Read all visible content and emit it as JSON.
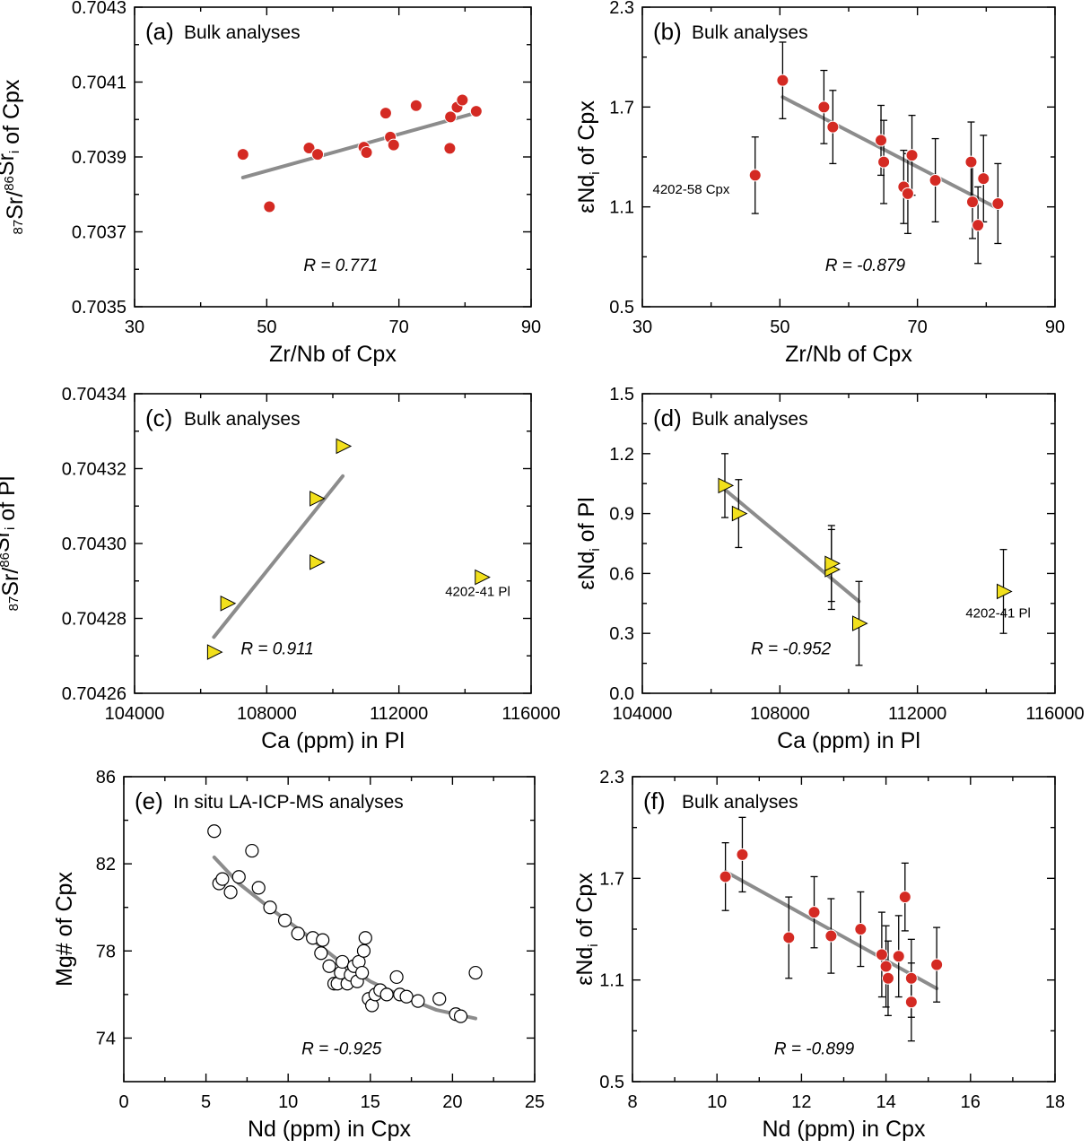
{
  "chart_data": [
    {
      "id": "a",
      "type": "scatter",
      "panel_label": "(a)",
      "title": "Bulk analyses",
      "xlabel": "Zr/Nb of Cpx",
      "ylabel": "87Sr/86Sri of Cpx",
      "xlim": [
        30,
        90
      ],
      "ylim": [
        0.7035,
        0.7043
      ],
      "xticks": [
        30,
        50,
        70,
        90
      ],
      "yticks": [
        0.7035,
        0.7037,
        0.7039,
        0.7041,
        0.7043
      ],
      "ytick_labels": [
        "0.7035",
        "0.7037",
        "0.7039",
        "0.7041",
        "0.7043"
      ],
      "marker": "circle",
      "marker_color": "#d42a23",
      "points": [
        {
          "x": 46.4,
          "y": 0.703907
        },
        {
          "x": 50.4,
          "y": 0.703767
        },
        {
          "x": 56.4,
          "y": 0.703924
        },
        {
          "x": 57.7,
          "y": 0.703907
        },
        {
          "x": 64.7,
          "y": 0.703926
        },
        {
          "x": 65.1,
          "y": 0.703912
        },
        {
          "x": 68.0,
          "y": 0.704017
        },
        {
          "x": 68.7,
          "y": 0.703953
        },
        {
          "x": 69.2,
          "y": 0.703932
        },
        {
          "x": 72.6,
          "y": 0.704037
        },
        {
          "x": 77.8,
          "y": 0.704007
        },
        {
          "x": 77.7,
          "y": 0.703923
        },
        {
          "x": 78.8,
          "y": 0.704033
        },
        {
          "x": 79.6,
          "y": 0.704052
        },
        {
          "x": 81.7,
          "y": 0.704022
        }
      ],
      "fit_line": [
        [
          46.4,
          0.703845
        ],
        [
          81.7,
          0.704018
        ]
      ],
      "r_text": "R = 0.771"
    },
    {
      "id": "b",
      "type": "scatter",
      "panel_label": "(b)",
      "title": "Bulk analyses",
      "xlabel": "Zr/Nb of Cpx",
      "ylabel": "εNdi of Cpx",
      "xlim": [
        30,
        90
      ],
      "ylim": [
        0.5,
        2.3
      ],
      "xticks": [
        30,
        50,
        70,
        90
      ],
      "yticks": [
        0.5,
        1.1,
        1.7,
        2.3
      ],
      "ytick_labels": [
        "0.5",
        "1.1",
        "1.7",
        "2.3"
      ],
      "marker": "circle",
      "marker_color": "#d42a23",
      "points": [
        {
          "x": 46.4,
          "y": 1.29,
          "err": 0.23
        },
        {
          "x": 50.4,
          "y": 1.86,
          "err": 0.23
        },
        {
          "x": 56.4,
          "y": 1.7,
          "err": 0.22
        },
        {
          "x": 57.7,
          "y": 1.58,
          "err": 0.22
        },
        {
          "x": 64.7,
          "y": 1.5,
          "err": 0.21
        },
        {
          "x": 65.1,
          "y": 1.37,
          "err": 0.25
        },
        {
          "x": 68.0,
          "y": 1.22,
          "err": 0.22
        },
        {
          "x": 68.6,
          "y": 1.18,
          "err": 0.24
        },
        {
          "x": 69.2,
          "y": 1.41,
          "err": 0.24
        },
        {
          "x": 72.6,
          "y": 1.26,
          "err": 0.25
        },
        {
          "x": 77.8,
          "y": 1.37,
          "err": 0.24
        },
        {
          "x": 78.0,
          "y": 1.13,
          "err": 0.22
        },
        {
          "x": 78.8,
          "y": 0.99,
          "err": 0.23
        },
        {
          "x": 79.6,
          "y": 1.27,
          "err": 0.26
        },
        {
          "x": 81.7,
          "y": 1.12,
          "err": 0.24
        }
      ],
      "fit_line": [
        [
          50.4,
          1.76
        ],
        [
          81.7,
          1.09
        ]
      ],
      "r_text": "R = -0.879",
      "annotations": [
        {
          "text": "4202-58 Cpx",
          "x": 31.5,
          "y": 1.18
        }
      ]
    },
    {
      "id": "c",
      "type": "scatter",
      "panel_label": "(c)",
      "title": "Bulk analyses",
      "xlabel": "Ca (ppm) in Pl",
      "ylabel": "87Sr/86Sri of Pl",
      "xlim": [
        104000,
        116000
      ],
      "ylim": [
        0.70426,
        0.70434
      ],
      "xticks": [
        104000,
        108000,
        112000,
        116000
      ],
      "yticks": [
        0.70426,
        0.70428,
        0.7043,
        0.70432,
        0.70434
      ],
      "ytick_labels": [
        "0.70426",
        "0.70428",
        "0.70430",
        "0.70432",
        "0.70434"
      ],
      "marker": "triangle-right",
      "marker_color": "#f2e01c",
      "points": [
        {
          "x": 106400,
          "y": 0.704271
        },
        {
          "x": 106800,
          "y": 0.704284
        },
        {
          "x": 109500,
          "y": 0.704312
        },
        {
          "x": 109500,
          "y": 0.704295
        },
        {
          "x": 110300,
          "y": 0.704326
        },
        {
          "x": 114500,
          "y": 0.704291
        }
      ],
      "fit_line": [
        [
          106400,
          0.704275
        ],
        [
          110300,
          0.704318
        ]
      ],
      "r_text": "R = 0.911",
      "annotations": [
        {
          "text": "4202-41 Pl",
          "x": 113400,
          "y": 0.704286
        }
      ]
    },
    {
      "id": "d",
      "type": "scatter",
      "panel_label": "(d)",
      "title": "Bulk analyses",
      "xlabel": "Ca (ppm) in Pl",
      "ylabel": "εNdi of Pl",
      "xlim": [
        104000,
        116000
      ],
      "ylim": [
        0.0,
        1.5
      ],
      "xticks": [
        104000,
        108000,
        112000,
        116000
      ],
      "yticks": [
        0.0,
        0.3,
        0.6,
        0.9,
        1.2,
        1.5
      ],
      "ytick_labels": [
        "0.0",
        "0.3",
        "0.6",
        "0.9",
        "1.2",
        "1.5"
      ],
      "marker": "triangle-right",
      "marker_color": "#f2e01c",
      "points": [
        {
          "x": 106400,
          "y": 1.04,
          "err": 0.16
        },
        {
          "x": 106800,
          "y": 0.9,
          "err": 0.17
        },
        {
          "x": 109500,
          "y": 0.62,
          "err": 0.2
        },
        {
          "x": 109500,
          "y": 0.65,
          "err": 0.19
        },
        {
          "x": 110300,
          "y": 0.35,
          "err": 0.21
        },
        {
          "x": 114500,
          "y": 0.51,
          "err": 0.21
        }
      ],
      "fit_line": [
        [
          106400,
          1.02
        ],
        [
          110300,
          0.46
        ]
      ],
      "r_text": "R = -0.952",
      "annotations": [
        {
          "text": "4202-41 Pl",
          "x": 113400,
          "y": 0.38
        }
      ]
    },
    {
      "id": "e",
      "type": "scatter",
      "panel_label": "(e)",
      "title": "In situ LA-ICP-MS analyses",
      "xlabel": "Nd (ppm) in Cpx",
      "ylabel": "Mg# of Cpx",
      "xlim": [
        0,
        25
      ],
      "ylim": [
        72,
        86
      ],
      "xticks": [
        0,
        5,
        10,
        15,
        20,
        25
      ],
      "yticks": [
        74,
        78,
        82,
        86
      ],
      "ytick_labels": [
        "74",
        "78",
        "82",
        "86"
      ],
      "marker": "open-circle",
      "marker_color": "#ffffff",
      "points": [
        {
          "x": 5.5,
          "y": 83.5
        },
        {
          "x": 5.8,
          "y": 81.1
        },
        {
          "x": 6.0,
          "y": 81.3
        },
        {
          "x": 6.5,
          "y": 80.7
        },
        {
          "x": 7.0,
          "y": 81.4
        },
        {
          "x": 7.8,
          "y": 82.6
        },
        {
          "x": 8.2,
          "y": 80.9
        },
        {
          "x": 8.9,
          "y": 80.0
        },
        {
          "x": 9.8,
          "y": 79.4
        },
        {
          "x": 10.6,
          "y": 78.8
        },
        {
          "x": 11.5,
          "y": 78.6
        },
        {
          "x": 12.0,
          "y": 77.9
        },
        {
          "x": 12.1,
          "y": 78.5
        },
        {
          "x": 12.5,
          "y": 77.3
        },
        {
          "x": 12.8,
          "y": 76.5
        },
        {
          "x": 13.0,
          "y": 76.5
        },
        {
          "x": 13.2,
          "y": 77.0
        },
        {
          "x": 13.3,
          "y": 77.5
        },
        {
          "x": 13.6,
          "y": 76.5
        },
        {
          "x": 13.8,
          "y": 76.9
        },
        {
          "x": 14.0,
          "y": 77.3
        },
        {
          "x": 14.2,
          "y": 76.6
        },
        {
          "x": 14.3,
          "y": 77.5
        },
        {
          "x": 14.5,
          "y": 77.0
        },
        {
          "x": 14.6,
          "y": 78.0
        },
        {
          "x": 14.7,
          "y": 78.6
        },
        {
          "x": 14.9,
          "y": 75.8
        },
        {
          "x": 15.1,
          "y": 75.5
        },
        {
          "x": 15.3,
          "y": 76.0
        },
        {
          "x": 15.6,
          "y": 76.2
        },
        {
          "x": 16.0,
          "y": 76.0
        },
        {
          "x": 16.6,
          "y": 76.8
        },
        {
          "x": 16.8,
          "y": 76.0
        },
        {
          "x": 17.2,
          "y": 75.9
        },
        {
          "x": 17.9,
          "y": 75.7
        },
        {
          "x": 19.2,
          "y": 75.8
        },
        {
          "x": 20.2,
          "y": 75.1
        },
        {
          "x": 20.5,
          "y": 75.0
        },
        {
          "x": 21.4,
          "y": 77.0
        }
      ],
      "fit_curve": [
        [
          5.5,
          82.3
        ],
        [
          7,
          81.1
        ],
        [
          9,
          79.9
        ],
        [
          11,
          78.8
        ],
        [
          13,
          77.6
        ],
        [
          15,
          76.6
        ],
        [
          17,
          75.9
        ],
        [
          19,
          75.3
        ],
        [
          21.4,
          74.9
        ]
      ],
      "r_text": "R = -0.925"
    },
    {
      "id": "f",
      "type": "scatter",
      "panel_label": "(f)",
      "title": "Bulk analyses",
      "xlabel": "Nd (ppm) in Cpx",
      "ylabel": "εNdi of Cpx",
      "xlim": [
        8,
        18
      ],
      "ylim": [
        0.5,
        2.3
      ],
      "xticks": [
        8,
        10,
        12,
        14,
        16,
        18
      ],
      "yticks": [
        0.5,
        1.1,
        1.7,
        2.3
      ],
      "ytick_labels": [
        "0.5",
        "1.1",
        "1.7",
        "2.3"
      ],
      "marker": "circle",
      "marker_color": "#d42a23",
      "points": [
        {
          "x": 10.2,
          "y": 1.71,
          "err": 0.2
        },
        {
          "x": 10.6,
          "y": 1.84,
          "err": 0.22
        },
        {
          "x": 11.7,
          "y": 1.35,
          "err": 0.24
        },
        {
          "x": 12.3,
          "y": 1.5,
          "err": 0.21
        },
        {
          "x": 12.7,
          "y": 1.36,
          "err": 0.22
        },
        {
          "x": 13.4,
          "y": 1.4,
          "err": 0.22
        },
        {
          "x": 13.9,
          "y": 1.25,
          "err": 0.25
        },
        {
          "x": 14.0,
          "y": 1.18,
          "err": 0.24
        },
        {
          "x": 14.05,
          "y": 1.11,
          "err": 0.22
        },
        {
          "x": 14.3,
          "y": 1.24,
          "err": 0.24
        },
        {
          "x": 14.45,
          "y": 1.59,
          "err": 0.2
        },
        {
          "x": 14.6,
          "y": 1.11,
          "err": 0.23
        },
        {
          "x": 14.6,
          "y": 0.97,
          "err": 0.23
        },
        {
          "x": 15.2,
          "y": 1.19,
          "err": 0.22
        }
      ],
      "fit_line": [
        [
          10.2,
          1.74
        ],
        [
          15.2,
          1.05
        ]
      ],
      "r_text": "R = -0.899"
    }
  ]
}
